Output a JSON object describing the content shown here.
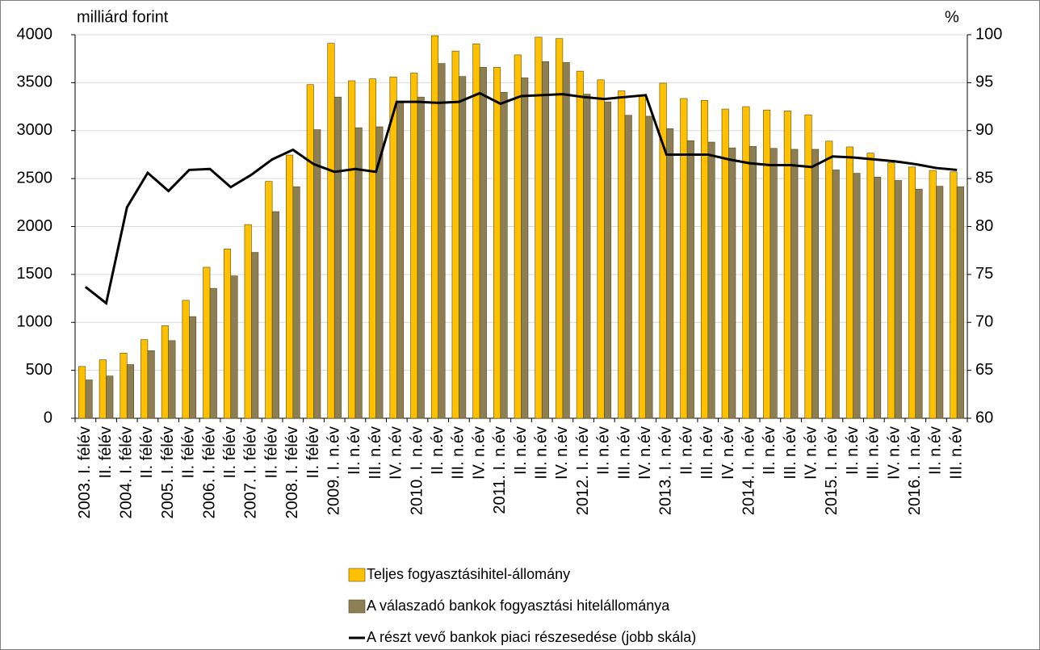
{
  "chart_data": {
    "type": "bar",
    "y_label": "milliárd forint",
    "y2_label": "%",
    "categories": [
      "2003. I. félév",
      "II. félév",
      "2004. I. félév",
      "II. félév",
      "2005. I. félév",
      "II. félév",
      "2006. I. félév",
      "II. félév",
      "2007. I. félév",
      "II. félév",
      "2008. I. félév",
      "II. félév",
      "2009. I. n.év",
      "II. n.év",
      "III. n.év",
      "IV. n.év",
      "2010. I. n.év",
      "II. n.év",
      "III. n.év",
      "IV. n.év",
      "2011. I. n.év",
      "II. n.év",
      "III. n.év",
      "IV. n.év",
      "2012. I. n.év",
      "II. n.év",
      "III. n.év",
      "IV. n.év",
      "2013. I. n.év",
      "II. n.év",
      "III. n.év",
      "IV. n.év",
      "2014. I. n.év",
      "II. n.év",
      "III. n.év",
      "IV. n.év",
      "2015. I. n.év",
      "II. n.év",
      "III. n.év",
      "IV. n.év",
      "2016. I. n.év",
      "II. n.év",
      "III. n.év"
    ],
    "series": [
      {
        "name": "Teljes fogyasztásihitel-állomány",
        "type": "bar",
        "color": "#ffc000",
        "values": [
          540,
          610,
          680,
          820,
          965,
          1230,
          1575,
          1765,
          2020,
          2470,
          2745,
          3480,
          3910,
          3520,
          3540,
          3560,
          3600,
          3990,
          3830,
          3905,
          3660,
          3790,
          3975,
          3960,
          3620,
          3530,
          3415,
          3370,
          3495,
          3335,
          3315,
          3225,
          3250,
          3215,
          3205,
          3165,
          2890,
          2830,
          2765,
          2665,
          2620,
          2585,
          2570
        ]
      },
      {
        "name": "A válaszadó bankok fogyasztási hitelállománya",
        "type": "bar",
        "color": "#8c7f55",
        "values": [
          400,
          440,
          560,
          705,
          810,
          1060,
          1355,
          1485,
          1730,
          2155,
          2415,
          3010,
          3350,
          3030,
          3040,
          3290,
          3350,
          3700,
          3565,
          3660,
          3400,
          3550,
          3720,
          3710,
          3380,
          3300,
          3160,
          3150,
          3020,
          2895,
          2880,
          2820,
          2835,
          2815,
          2805,
          2805,
          2590,
          2555,
          2515,
          2480,
          2390,
          2420,
          2415
        ]
      },
      {
        "name": "A részt vevő bankok piaci részesedése (jobb skála)",
        "type": "line",
        "color": "#000000",
        "axis": "y2",
        "values": [
          73.7,
          72,
          82,
          85.6,
          83.7,
          85.9,
          86,
          84.1,
          85.4,
          87,
          88,
          86.5,
          85.7,
          86,
          85.7,
          93,
          93,
          92.9,
          93,
          93.9,
          92.8,
          93.6,
          93.7,
          93.8,
          93.5,
          93.3,
          93.5,
          93.7,
          87.5,
          87.5,
          87.5,
          87,
          86.6,
          86.4,
          86.4,
          86.2,
          87.3,
          87.2,
          87,
          86.8,
          86.5,
          86.1,
          85.9
        ]
      }
    ],
    "ylim": [
      0,
      4000
    ],
    "yticks": [
      0,
      500,
      1000,
      1500,
      2000,
      2500,
      3000,
      3500,
      4000
    ],
    "y2lim": [
      60,
      100
    ],
    "y2ticks": [
      60,
      65,
      70,
      75,
      80,
      85,
      90,
      95,
      100
    ],
    "grid": true
  }
}
